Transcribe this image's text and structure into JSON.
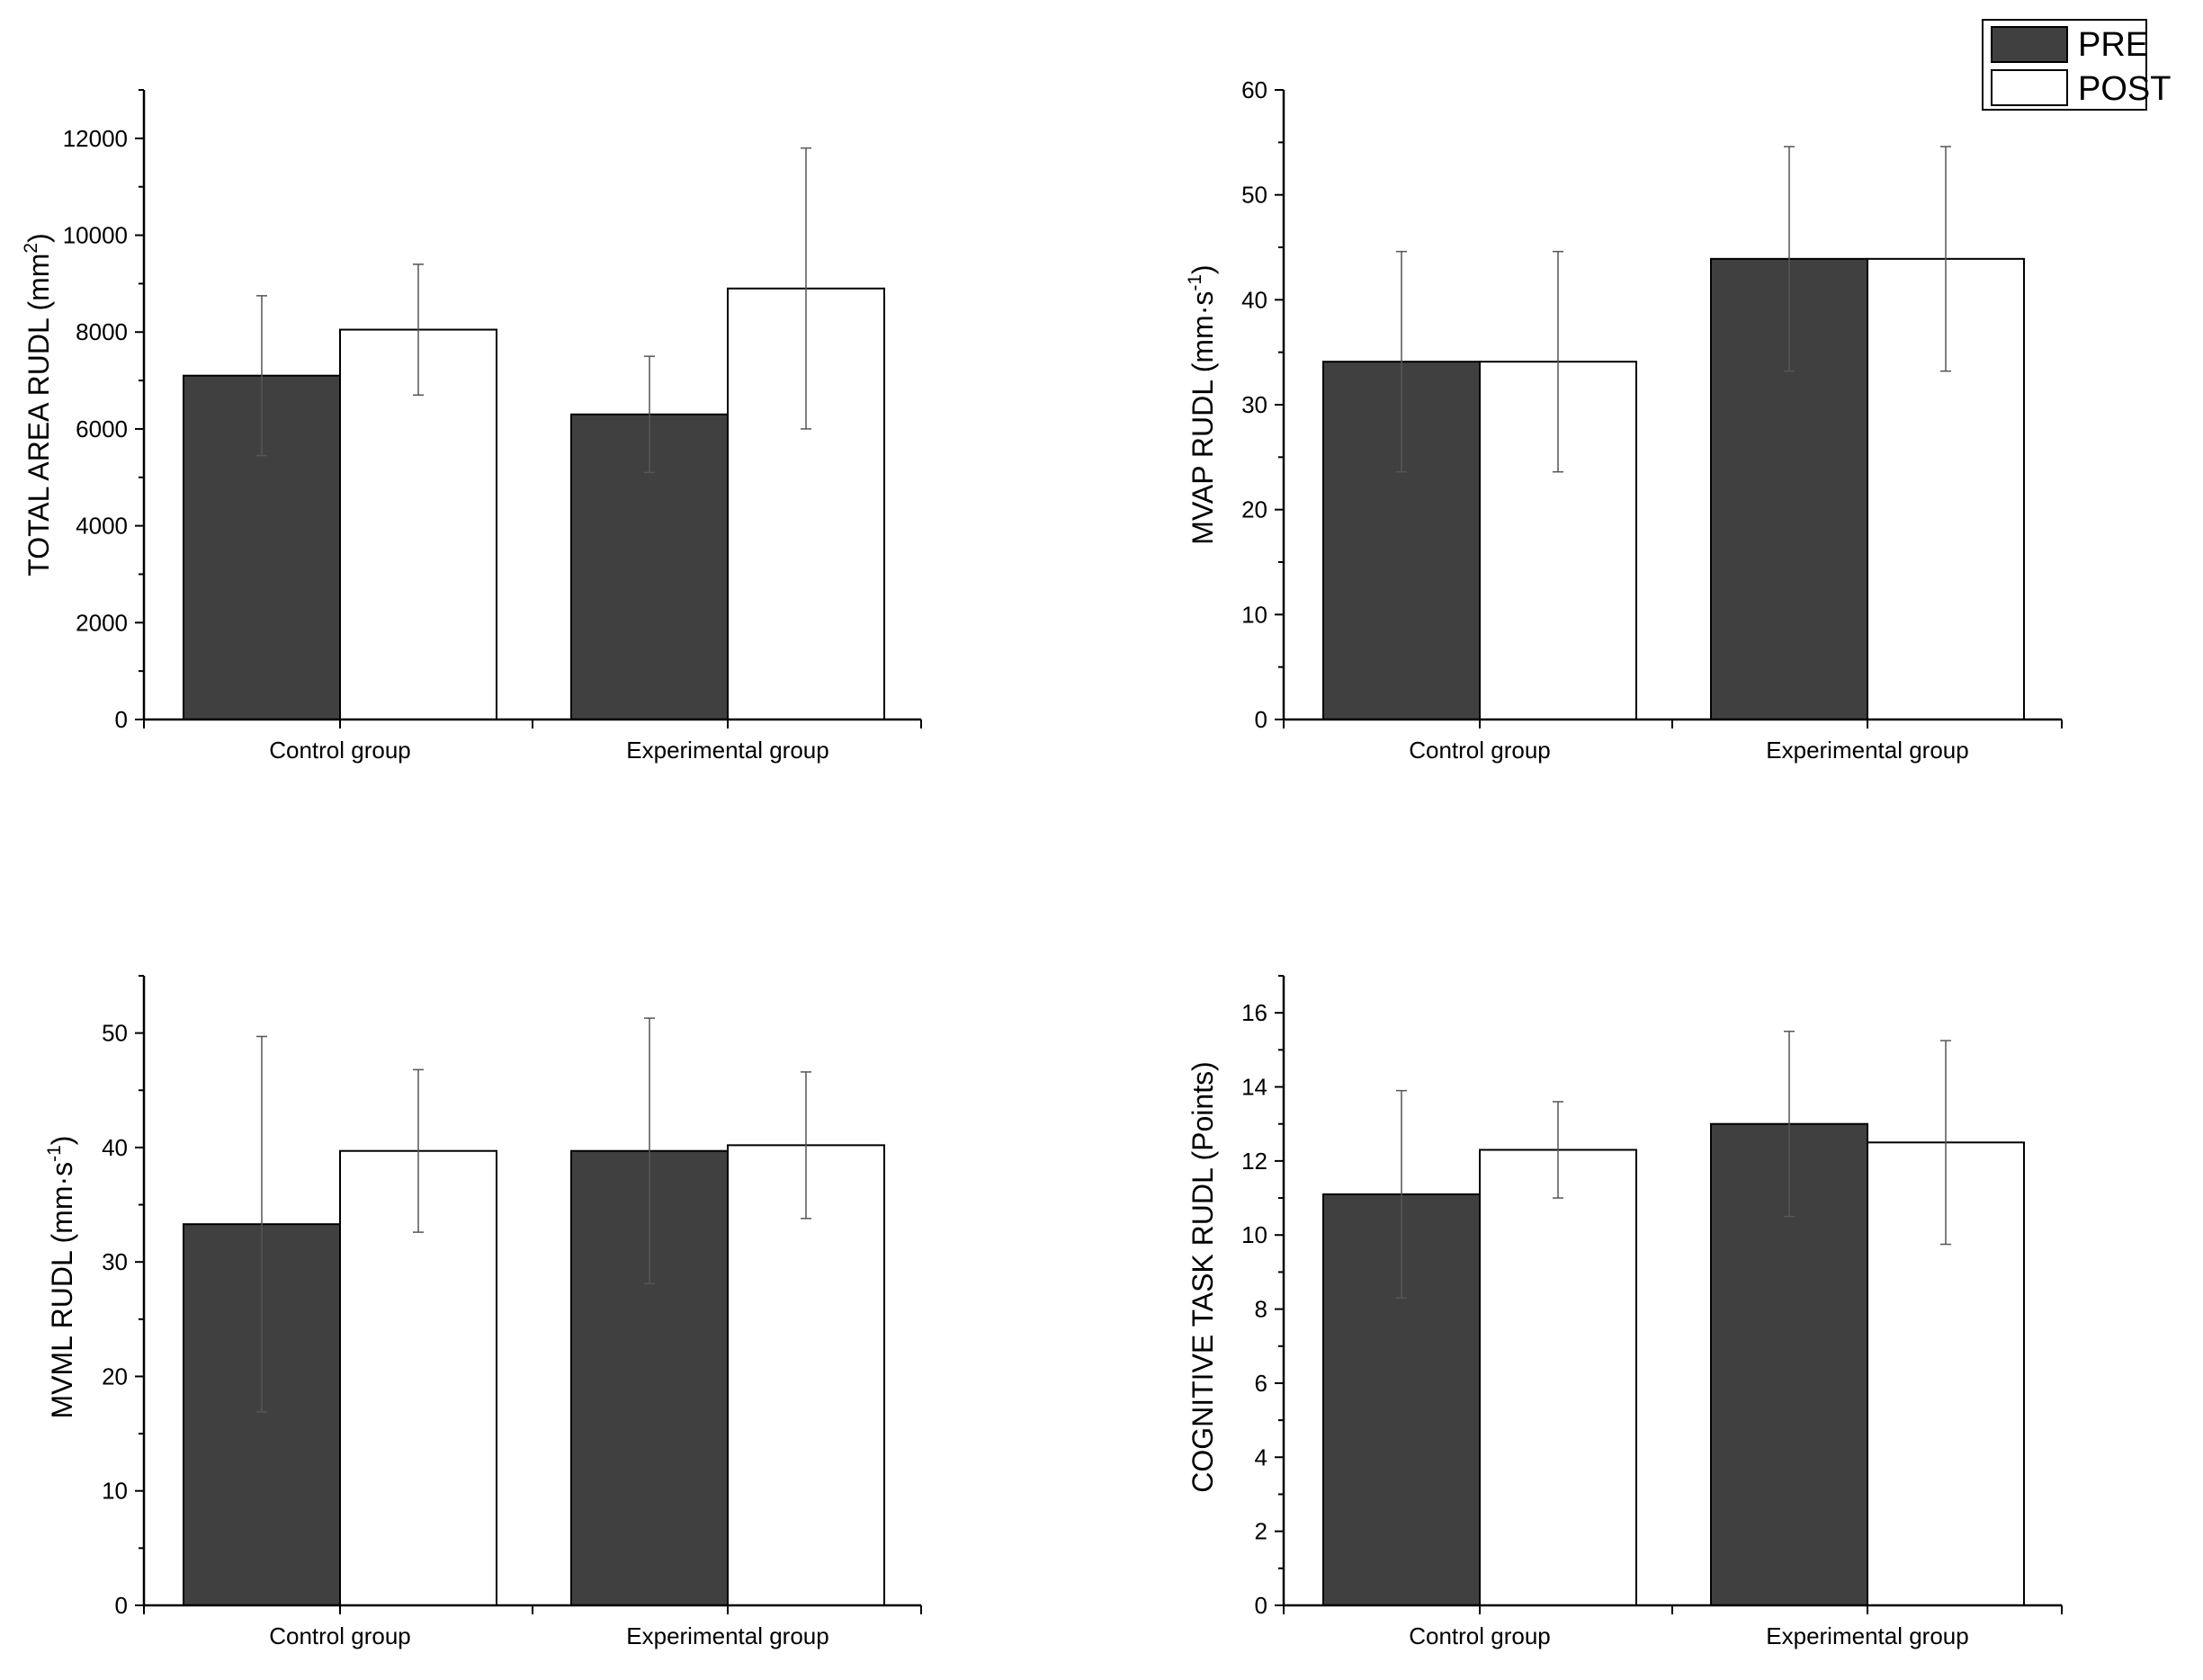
{
  "colors": {
    "pre": "#404040",
    "post": "#ffffff",
    "stroke": "#000000",
    "error": "#555555"
  },
  "legend": {
    "pre_label": "PRE",
    "post_label": "POST"
  },
  "chart_data": [
    {
      "type": "bar",
      "ylabel_main": "TOTAL AREA RUDL (mm",
      "ylabel_sup": "2",
      "ylabel_end": ")",
      "ylim": [
        0,
        13000
      ],
      "ticks": [
        0,
        2000,
        4000,
        6000,
        8000,
        10000,
        12000
      ],
      "tick_labels": [
        "0",
        "2000",
        "4000",
        "6000",
        "8000",
        "10000",
        "12000"
      ],
      "categories": [
        "Control group",
        "Experimental group"
      ],
      "series": [
        {
          "name": "PRE",
          "values": [
            7100,
            6300
          ],
          "errors": [
            1650,
            1200
          ]
        },
        {
          "name": "POST",
          "values": [
            8050,
            8900
          ],
          "errors": [
            1350,
            2900
          ]
        }
      ]
    },
    {
      "type": "bar",
      "ylabel_main": "MVAP RUDL (mm·s",
      "ylabel_sup": "-1",
      "ylabel_end": ")",
      "ylim": [
        0,
        60
      ],
      "ticks": [
        0,
        10,
        20,
        30,
        40,
        50,
        60
      ],
      "tick_labels": [
        "0",
        "10",
        "20",
        "30",
        "40",
        "50",
        "60"
      ],
      "categories": [
        "Control group",
        "Experimental group"
      ],
      "series": [
        {
          "name": "PRE",
          "values": [
            34.1,
            43.9
          ],
          "errors": [
            10.5,
            10.7
          ]
        },
        {
          "name": "POST",
          "values": [
            34.1,
            43.9
          ],
          "errors": [
            10.5,
            10.7
          ]
        }
      ]
    },
    {
      "type": "bar",
      "ylabel_main": "MVML RUDL (mm·s",
      "ylabel_sup": "-1",
      "ylabel_end": ")",
      "ylim": [
        0,
        55
      ],
      "ticks": [
        0,
        10,
        20,
        30,
        40,
        50
      ],
      "tick_labels": [
        "0",
        "10",
        "20",
        "30",
        "40",
        "50"
      ],
      "categories": [
        "Control group",
        "Experimental group"
      ],
      "series": [
        {
          "name": "PRE",
          "values": [
            33.3,
            39.7
          ],
          "errors": [
            16.4,
            11.6
          ]
        },
        {
          "name": "POST",
          "values": [
            39.7,
            40.2
          ],
          "errors": [
            7.1,
            6.4
          ]
        }
      ]
    },
    {
      "type": "bar",
      "ylabel_main": "COGNITIVE TASK RUDL (Points)",
      "ylabel_sup": "",
      "ylabel_end": "",
      "ylim": [
        0,
        17
      ],
      "ticks": [
        0,
        2,
        4,
        6,
        8,
        10,
        12,
        14,
        16
      ],
      "tick_labels": [
        "0",
        "2",
        "4",
        "6",
        "8",
        "10",
        "12",
        "14",
        "16"
      ],
      "categories": [
        "Control group",
        "Experimental group"
      ],
      "series": [
        {
          "name": "PRE",
          "values": [
            11.1,
            13.0
          ],
          "errors": [
            2.8,
            2.5
          ]
        },
        {
          "name": "POST",
          "values": [
            12.3,
            12.5
          ],
          "errors": [
            1.3,
            2.75
          ]
        }
      ]
    }
  ]
}
